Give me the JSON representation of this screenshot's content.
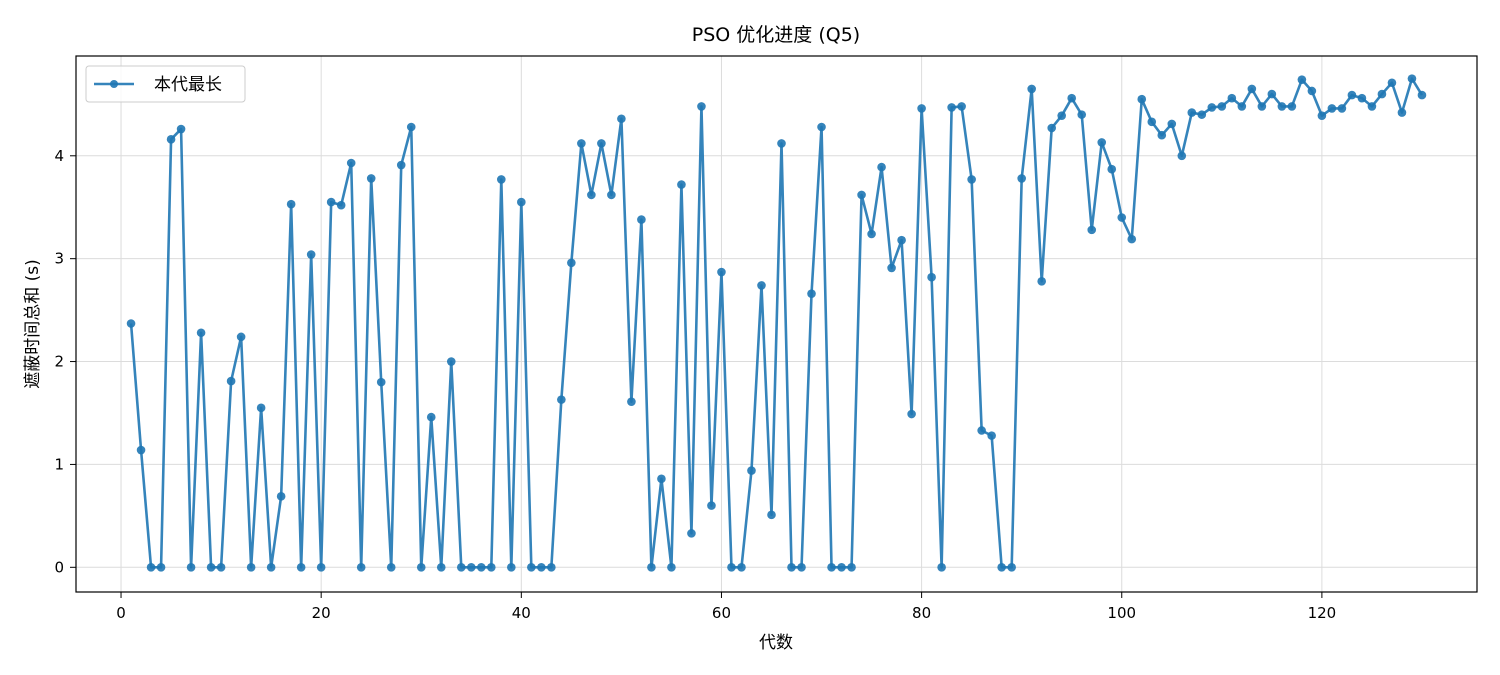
{
  "chart_data": {
    "type": "line",
    "title": "PSO 优化进度 (Q5)",
    "xlabel": "代数",
    "ylabel": "遮蔽时间总和 (s)",
    "xlim": [
      -4.5,
      135.5
    ],
    "ylim": [
      -0.24,
      4.97
    ],
    "xticks": [
      0,
      20,
      40,
      60,
      80,
      100,
      120
    ],
    "yticks": [
      0,
      1,
      2,
      3,
      4
    ],
    "grid": true,
    "legend_position": "upper-left",
    "line_color": "#1f77b4",
    "series": [
      {
        "name": "本代最长",
        "x": [
          1,
          2,
          3,
          4,
          5,
          6,
          7,
          8,
          9,
          10,
          11,
          12,
          13,
          14,
          15,
          16,
          17,
          18,
          19,
          20,
          21,
          22,
          23,
          24,
          25,
          26,
          27,
          28,
          29,
          30,
          31,
          32,
          33,
          34,
          35,
          36,
          37,
          38,
          39,
          40,
          41,
          42,
          43,
          44,
          45,
          46,
          47,
          48,
          49,
          50,
          51,
          52,
          53,
          54,
          55,
          56,
          57,
          58,
          59,
          60,
          61,
          62,
          63,
          64,
          65,
          66,
          67,
          68,
          69,
          70,
          71,
          72,
          73,
          74,
          75,
          76,
          77,
          78,
          79,
          80,
          81,
          82,
          83,
          84,
          85,
          86,
          87,
          88,
          89,
          90,
          91,
          92,
          93,
          94,
          95,
          96,
          97,
          98,
          99,
          100,
          101,
          102,
          103,
          104,
          105,
          106,
          107,
          108,
          109,
          110,
          111,
          112,
          113,
          114,
          115,
          116,
          117,
          118,
          119,
          120,
          121,
          122,
          123,
          124,
          125,
          126,
          127,
          128,
          129,
          130
        ],
        "values": [
          2.37,
          1.14,
          0,
          0,
          4.16,
          4.26,
          0,
          2.28,
          0,
          0,
          1.81,
          2.24,
          0,
          1.55,
          0,
          0.69,
          3.53,
          0,
          3.04,
          0,
          3.55,
          3.52,
          3.93,
          0,
          3.78,
          1.8,
          0,
          3.91,
          4.28,
          0,
          1.46,
          0,
          2.0,
          0,
          0,
          0,
          0,
          3.77,
          0,
          3.55,
          0,
          0,
          0,
          1.63,
          2.96,
          4.12,
          3.62,
          4.12,
          3.62,
          4.36,
          1.61,
          3.38,
          0,
          0.86,
          0,
          3.72,
          0.33,
          4.48,
          0.6,
          2.87,
          0,
          0,
          0.94,
          2.74,
          0.51,
          4.12,
          0,
          0,
          2.66,
          4.28,
          0,
          0,
          0,
          3.62,
          3.24,
          3.89,
          2.91,
          3.18,
          1.49,
          4.46,
          2.82,
          0,
          4.47,
          4.48,
          3.77,
          1.33,
          1.28,
          0,
          0,
          3.78,
          4.65,
          2.78,
          4.27,
          4.39,
          4.56,
          4.4,
          3.28,
          4.13,
          3.87,
          3.4,
          3.19,
          4.55,
          4.33,
          4.2,
          4.31,
          4.0,
          4.42,
          4.4,
          4.47,
          4.48,
          4.56,
          4.48,
          4.65,
          4.48,
          4.6,
          4.48,
          4.48,
          4.74,
          4.63,
          4.39,
          4.46,
          4.46,
          4.59,
          4.56,
          4.48,
          4.6,
          4.71,
          4.42,
          4.75,
          4.59
        ]
      }
    ]
  }
}
